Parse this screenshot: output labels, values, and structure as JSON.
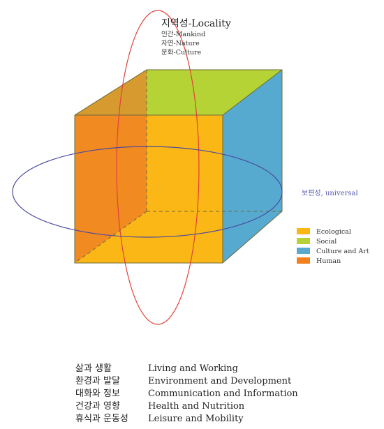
{
  "title": {
    "main": "지역성-Locality",
    "sub": [
      "인간-Mankind",
      "자연-Nature",
      "문화-Culture"
    ]
  },
  "universal_label": "보편성, universal",
  "legend": [
    {
      "label": "Ecological",
      "color": "#FBB715"
    },
    {
      "label": "Social",
      "color": "#B5D334"
    },
    {
      "label": "Culture and Art",
      "color": "#57AACF"
    },
    {
      "label": "Human",
      "color": "#F2801F"
    }
  ],
  "colors": {
    "vertical_ellipse": "#E0413A",
    "horizontal_ellipse": "#4A4AA0",
    "universal_text": "#5A5AB0",
    "cube_edge": "#6B6B3A"
  },
  "themes": [
    {
      "ko": "삶과 생활",
      "en": "Living and Working"
    },
    {
      "ko": "환경과 발달",
      "en": "Environment and Development"
    },
    {
      "ko": "대화와 정보",
      "en": "Communication and Information"
    },
    {
      "ko": "건강과 영향",
      "en": "Health and Nutrition"
    },
    {
      "ko": "휴식과 운동성",
      "en": "Leisure and Mobility"
    }
  ]
}
